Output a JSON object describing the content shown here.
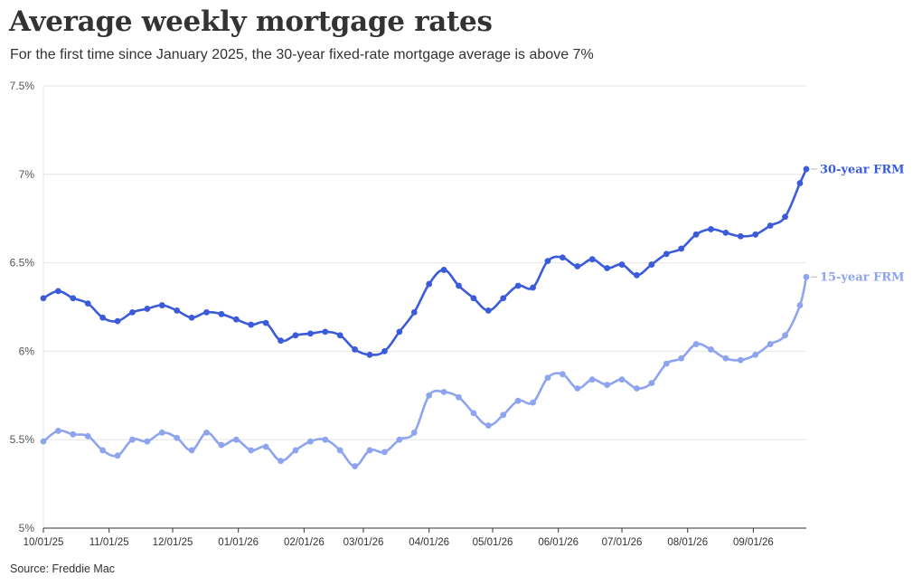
{
  "header": {
    "title": "Average weekly mortgage rates",
    "subtitle": "For the first time since January 2025, the 30-year fixed-rate mortgage average is above 7%"
  },
  "footer": {
    "source": "Source: Freddie Mac"
  },
  "colors": {
    "series_30": "#3b5bdb",
    "series_15": "#8ea4ef",
    "grid": "#e6e6e6",
    "axis": "#333333"
  },
  "chart_data": {
    "type": "line",
    "title": "Average weekly mortgage rates",
    "subtitle": "For the first time since January 2025, the 30-year fixed-rate mortgage average is above 7%",
    "xlabel": "",
    "ylabel": "",
    "ylim": [
      5,
      7.5
    ],
    "y_ticks": [
      5,
      5.5,
      6,
      6.5,
      7,
      7.5
    ],
    "y_tick_labels": [
      "5%",
      "5.5%",
      "6%",
      "6.5%",
      "7%",
      "7.5%"
    ],
    "x_start": "2025-10-01",
    "x_end": "2026-09-26",
    "x_ticks": [
      "2025-10-01",
      "2025-11-01",
      "2025-12-01",
      "2026-01-01",
      "2026-02-01",
      "2026-03-01",
      "2026-04-01",
      "2026-05-01",
      "2026-06-01",
      "2026-07-01",
      "2026-08-01",
      "2026-09-01"
    ],
    "x_tick_labels": [
      "10/01/25",
      "11/01/25",
      "12/01/25",
      "01/01/26",
      "02/01/26",
      "03/01/26",
      "04/01/26",
      "05/01/26",
      "06/01/26",
      "07/01/26",
      "08/01/26",
      "09/01/26"
    ],
    "grid": true,
    "legend": "end-of-line labels",
    "x": [
      "2025-10-01",
      "2025-10-08",
      "2025-10-15",
      "2025-10-22",
      "2025-10-29",
      "2025-11-05",
      "2025-11-12",
      "2025-11-19",
      "2025-11-26",
      "2025-12-03",
      "2025-12-10",
      "2025-12-17",
      "2025-12-24",
      "2025-12-31",
      "2026-01-07",
      "2026-01-14",
      "2026-01-21",
      "2026-01-28",
      "2026-02-04",
      "2026-02-11",
      "2026-02-18",
      "2026-02-25",
      "2026-03-04",
      "2026-03-11",
      "2026-03-18",
      "2026-03-25",
      "2026-04-01",
      "2026-04-08",
      "2026-04-15",
      "2026-04-22",
      "2026-04-29",
      "2026-05-06",
      "2026-05-13",
      "2026-05-20",
      "2026-05-27",
      "2026-06-03",
      "2026-06-10",
      "2026-06-17",
      "2026-06-24",
      "2026-07-01",
      "2026-07-08",
      "2026-07-15",
      "2026-07-22",
      "2026-07-29",
      "2026-08-05",
      "2026-08-12",
      "2026-08-19",
      "2026-08-26",
      "2026-09-02",
      "2026-09-09",
      "2026-09-16",
      "2026-09-23",
      "2026-09-26"
    ],
    "series": [
      {
        "name": "30-year FRM",
        "values": [
          6.3,
          6.34,
          6.3,
          6.27,
          6.19,
          6.17,
          6.22,
          6.24,
          6.26,
          6.23,
          6.19,
          6.22,
          6.21,
          6.18,
          6.15,
          6.16,
          6.06,
          6.09,
          6.1,
          6.11,
          6.09,
          6.01,
          5.98,
          6.0,
          6.11,
          6.22,
          6.38,
          6.46,
          6.37,
          6.3,
          6.23,
          6.3,
          6.37,
          6.36,
          6.51,
          6.53,
          6.48,
          6.52,
          6.47,
          6.49,
          6.43,
          6.49,
          6.55,
          6.58,
          6.66,
          6.69,
          6.67,
          6.65,
          6.66,
          6.71,
          6.76,
          6.95,
          7.03
        ]
      },
      {
        "name": "15-year FRM",
        "values": [
          5.49,
          5.55,
          5.53,
          5.52,
          5.44,
          5.41,
          5.5,
          5.49,
          5.54,
          5.51,
          5.44,
          5.54,
          5.47,
          5.5,
          5.44,
          5.46,
          5.38,
          5.44,
          5.49,
          5.5,
          5.44,
          5.35,
          5.44,
          5.43,
          5.5,
          5.54,
          5.75,
          5.77,
          5.74,
          5.65,
          5.58,
          5.64,
          5.72,
          5.71,
          5.85,
          5.87,
          5.79,
          5.84,
          5.81,
          5.84,
          5.79,
          5.82,
          5.93,
          5.96,
          6.04,
          6.01,
          5.96,
          5.95,
          5.98,
          6.04,
          6.09,
          6.26,
          6.42
        ]
      }
    ]
  }
}
